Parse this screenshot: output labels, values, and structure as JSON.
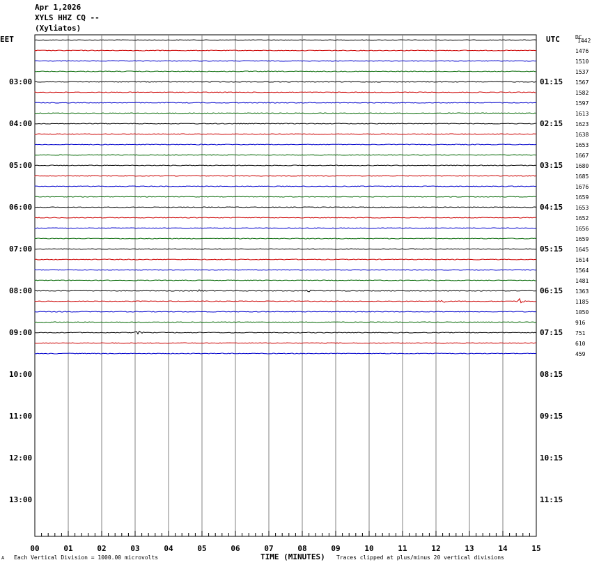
{
  "header": {
    "date": "Apr 1,2026",
    "station": "XYLS HHZ CQ --",
    "location": "(Xyliatos)"
  },
  "left_tz": "EET",
  "right_tz": "UTC",
  "dc_header": "DC",
  "x_axis_label": "TIME (MINUTES)",
  "footer_left_mark": "A",
  "footer_scale": "Each Vertical Division = 1000.00 microvolts",
  "footer_clip": "Traces clipped at plus/minus 20 vertical divisions",
  "colors": {
    "black": "#000000",
    "red": "#cc0000",
    "blue": "#0000cc",
    "green": "#006600",
    "grid": "#808080"
  },
  "chart_data": {
    "type": "line",
    "title": "XYLS HHZ CQ -- (Xyliatos) Apr 1,2026",
    "xlabel": "TIME (MINUTES)",
    "x_ticks": [
      "00",
      "01",
      "02",
      "03",
      "04",
      "05",
      "06",
      "07",
      "08",
      "09",
      "10",
      "11",
      "12",
      "13",
      "14",
      "15"
    ],
    "xlim": [
      0,
      15
    ],
    "trace_colors_cycle": [
      "black",
      "red",
      "blue",
      "green"
    ],
    "left_time_labels": [
      "03:00",
      "04:00",
      "05:00",
      "06:00",
      "07:00",
      "08:00",
      "09:00",
      "10:00",
      "11:00",
      "12:00",
      "13:00"
    ],
    "right_time_labels": [
      "01:15",
      "02:15",
      "03:15",
      "04:15",
      "05:15",
      "06:15",
      "07:15",
      "08:15",
      "09:15",
      "10:15",
      "11:15"
    ],
    "dc_offsets": [
      1442,
      1476,
      1510,
      1537,
      1567,
      1582,
      1597,
      1613,
      1623,
      1638,
      1653,
      1667,
      1680,
      1685,
      1676,
      1659,
      1653,
      1652,
      1656,
      1659,
      1645,
      1614,
      1564,
      1481,
      1363,
      1185,
      1050,
      916,
      751,
      610,
      459
    ],
    "events": [
      {
        "trace_index": 24,
        "minute": 4.9,
        "amplitude": 1.2
      },
      {
        "trace_index": 24,
        "minute": 8.2,
        "amplitude": 1.0
      },
      {
        "trace_index": 25,
        "minute": 12.2,
        "amplitude": 1.5
      },
      {
        "trace_index": 25,
        "minute": 14.5,
        "amplitude": 4.0
      },
      {
        "trace_index": 28,
        "minute": 3.1,
        "amplitude": 2.0
      }
    ]
  }
}
